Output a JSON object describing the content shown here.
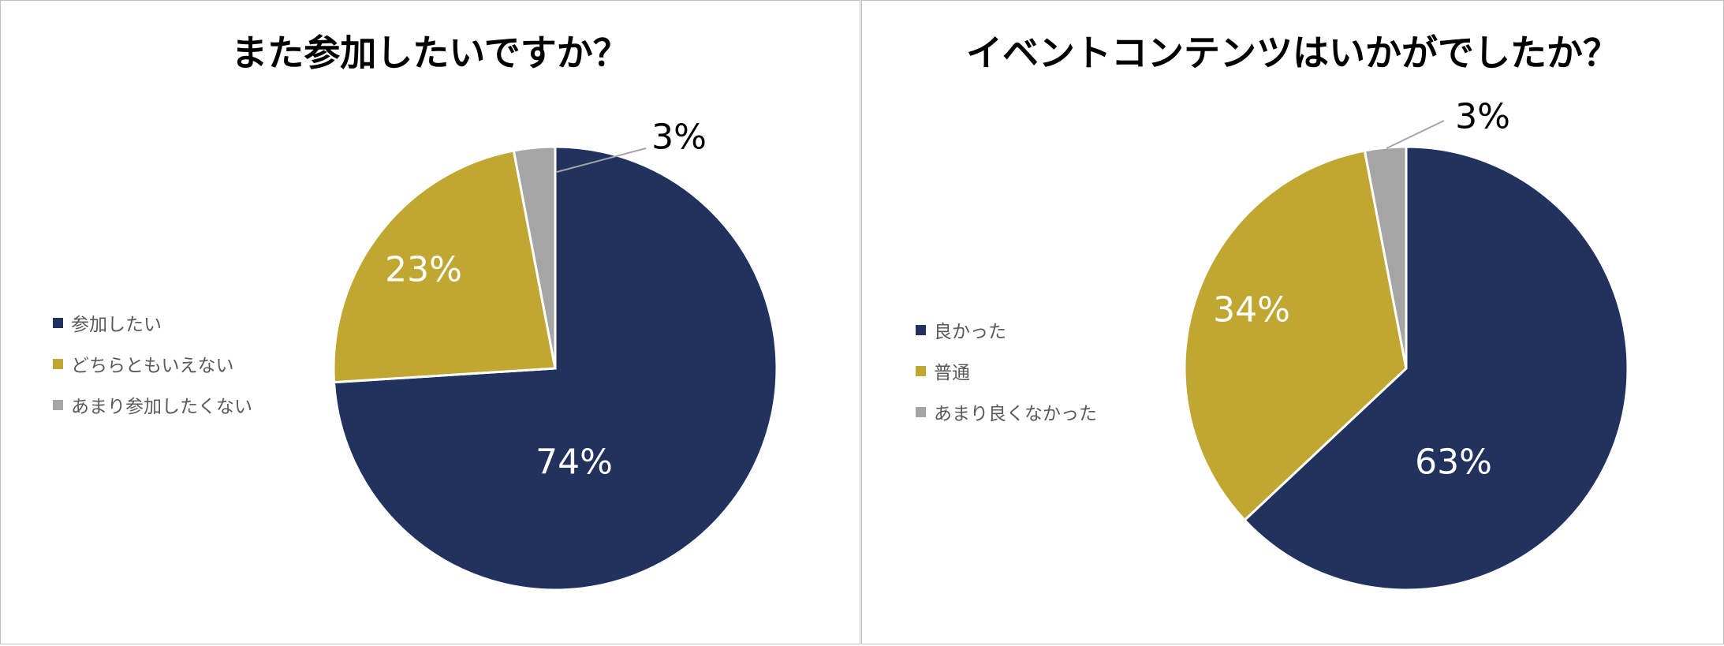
{
  "chart_data": [
    {
      "type": "pie",
      "title": "また参加したいですか？",
      "categories": [
        "参加したい",
        "どちらともいえない",
        "あまり参加したくない"
      ],
      "values": [
        74,
        23,
        3
      ],
      "labels": [
        "74%",
        "23%",
        "3%"
      ],
      "colors": [
        "#21325E",
        "#BFA731",
        "#A5A5A5"
      ],
      "legend_position": "left"
    },
    {
      "type": "pie",
      "title": "イベントコンテンツはいかがでしたか？",
      "categories": [
        "良かった",
        "普通",
        "あまり良くなかった"
      ],
      "values": [
        63,
        34,
        3
      ],
      "labels": [
        "63%",
        "34%",
        "3%"
      ],
      "colors": [
        "#21325E",
        "#BFA731",
        "#A5A5A5"
      ],
      "legend_position": "left"
    }
  ]
}
